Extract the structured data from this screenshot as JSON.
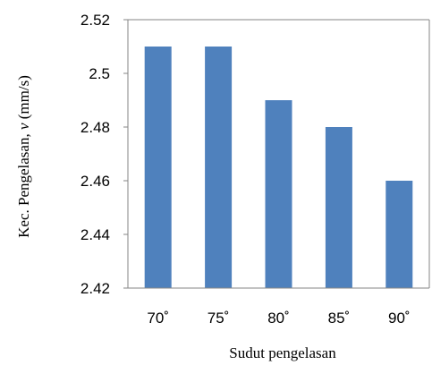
{
  "chart_data": {
    "type": "bar",
    "categories": [
      "70˚",
      "75˚",
      "80˚",
      "85˚",
      "90˚"
    ],
    "values": [
      2.51,
      2.51,
      2.49,
      2.48,
      2.46
    ],
    "xlabel": "Sudut pengelasan",
    "ylabel_prefix": "Kec. Pengelasan, ",
    "ylabel_var": "v",
    "ylabel_unit": " (mm/s)",
    "ylim": [
      2.42,
      2.52
    ],
    "yticks": [
      2.42,
      2.44,
      2.46,
      2.48,
      2.5,
      2.52
    ],
    "ytick_labels": [
      "2.42",
      "2.44",
      "2.46",
      "2.48",
      "2.5",
      "2.52"
    ],
    "grid": false,
    "bar_color": "#4F81BD",
    "axis_color": "#868686"
  }
}
